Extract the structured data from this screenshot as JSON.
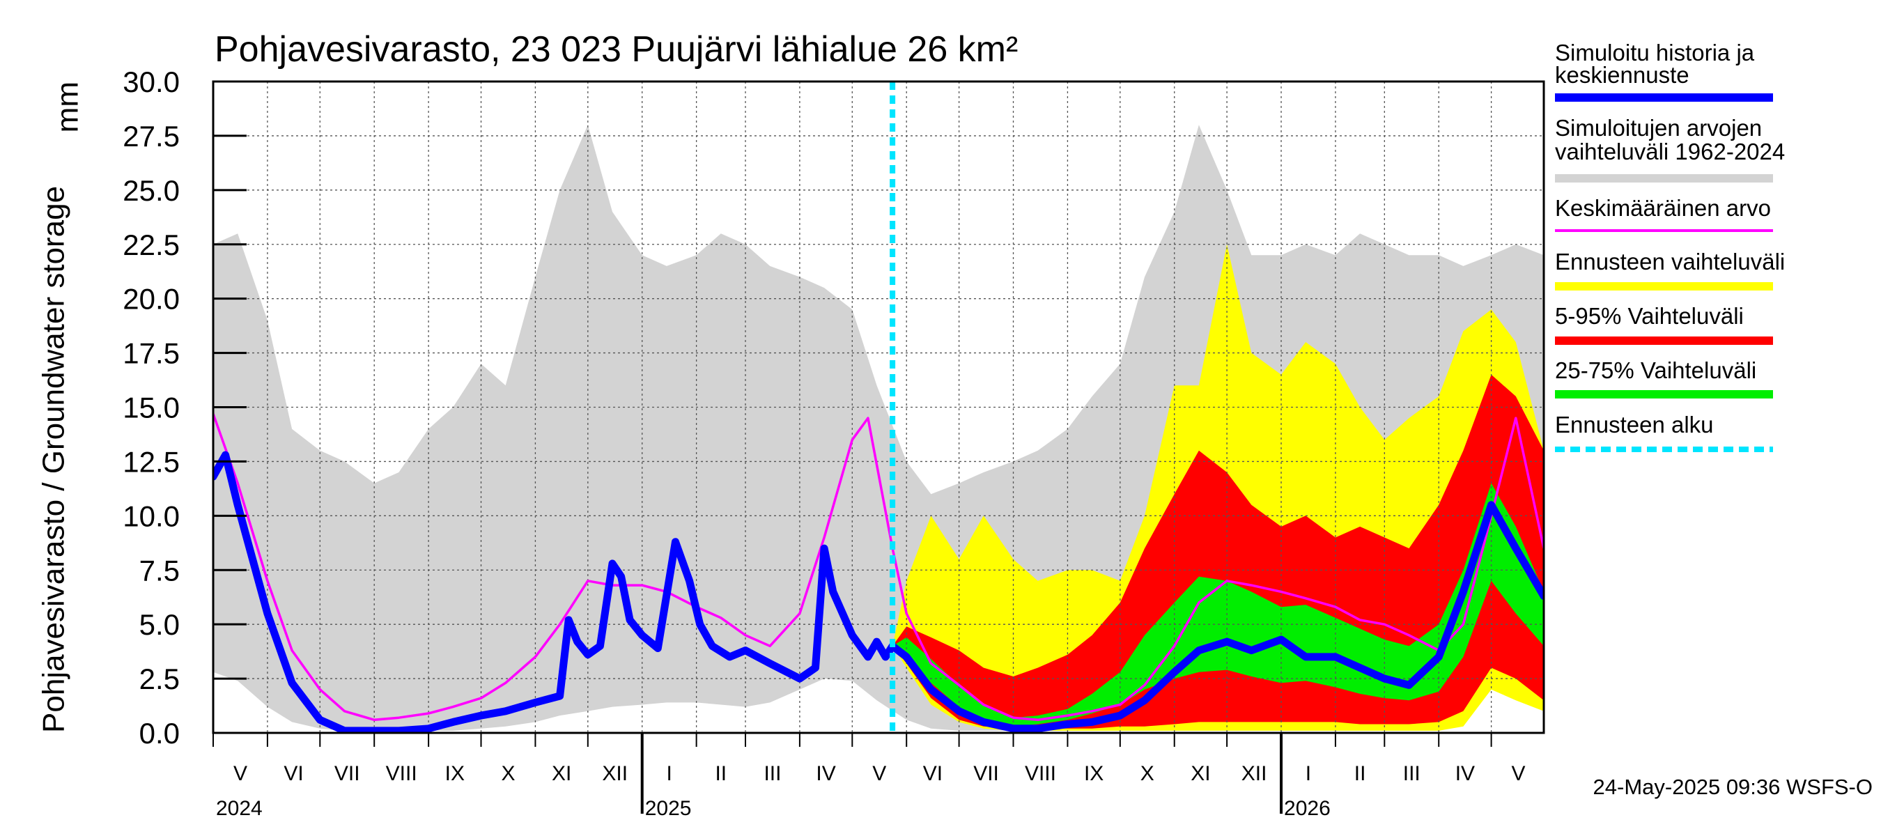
{
  "chart_data": {
    "type": "area",
    "title": "Pohjavesivarasto, 23 023 Puujärvi lähialue 26 km²",
    "ylabel": "Pohjavesivarasto / Groundwater storage",
    "yunit": "mm",
    "ylim": [
      0,
      30
    ],
    "yticks": [
      "0.0",
      "2.5",
      "5.0",
      "7.5",
      "10.0",
      "12.5",
      "15.0",
      "17.5",
      "20.0",
      "22.5",
      "25.0",
      "27.5",
      "30.0"
    ],
    "x_start": "2024-05-01",
    "x_end": "2026-05-31",
    "grid": true,
    "forecast_start": "2025-05-24",
    "months": [
      "V",
      "VI",
      "VII",
      "VIII",
      "IX",
      "X",
      "XI",
      "XII",
      "I",
      "II",
      "III",
      "IV",
      "V",
      "VI",
      "VII",
      "VIII",
      "IX",
      "X",
      "XI",
      "XII",
      "I",
      "II",
      "III",
      "IV",
      "V"
    ],
    "years": [
      "2024",
      "2025",
      "2026"
    ],
    "timestamp": "24-May-2025 09:36 WSFS-O",
    "legend": [
      {
        "label": "Simuloitu historia ja keskiennuste",
        "color": "#0000ff"
      },
      {
        "label": "Simuloitujen arvojen vaihteluväli 1962-2024",
        "color": "#d3d3d3"
      },
      {
        "label": "Keskimääräinen arvo",
        "color": "#ff00ff"
      },
      {
        "label": "Ennusteen vaihteluväli",
        "color": "#ffff00"
      },
      {
        "label": "5-95% Vaihteluväli",
        "color": "#ff0000"
      },
      {
        "label": "25-75% Vaihteluväli",
        "color": "#00ee00"
      },
      {
        "label": "Ennusteen alku",
        "color": "#00e5ff"
      }
    ],
    "series": {
      "range_1962_2024": {
        "dates": [
          "2024-05-01",
          "2024-05-15",
          "2024-06-01",
          "2024-06-15",
          "2024-07-01",
          "2024-07-15",
          "2024-08-01",
          "2024-08-15",
          "2024-09-01",
          "2024-09-15",
          "2024-10-01",
          "2024-10-15",
          "2024-11-01",
          "2024-11-15",
          "2024-12-01",
          "2024-12-15",
          "2025-01-01",
          "2025-01-15",
          "2025-02-01",
          "2025-02-15",
          "2025-03-01",
          "2025-03-15",
          "2025-04-01",
          "2025-04-15",
          "2025-05-01",
          "2025-05-15",
          "2025-06-01",
          "2025-06-15",
          "2025-07-01",
          "2025-07-15",
          "2025-08-01",
          "2025-08-15",
          "2025-09-01",
          "2025-09-15",
          "2025-10-01",
          "2025-10-15",
          "2025-11-01",
          "2025-11-15",
          "2025-12-01",
          "2025-12-15",
          "2026-01-01",
          "2026-01-15",
          "2026-02-01",
          "2026-02-15",
          "2026-03-01",
          "2026-03-15",
          "2026-04-01",
          "2026-04-15",
          "2026-05-01",
          "2026-05-15",
          "2026-05-31"
        ],
        "min": [
          2.8,
          2.4,
          1.2,
          0.5,
          0.2,
          0.1,
          0.1,
          0.1,
          0.1,
          0.1,
          0.2,
          0.3,
          0.5,
          0.8,
          1.0,
          1.2,
          1.3,
          1.4,
          1.4,
          1.3,
          1.2,
          1.4,
          2.0,
          2.5,
          2.4,
          1.5,
          0.6,
          0.2,
          0.1,
          0.1,
          0.1,
          0.1,
          0.1,
          0.1,
          0.2,
          0.3,
          0.5,
          0.8,
          1.0,
          1.2,
          1.3,
          1.4,
          1.4,
          1.3,
          1.2,
          1.4,
          2.0,
          2.5,
          2.6,
          2.4,
          2.3
        ],
        "max": [
          22.5,
          23.0,
          19.0,
          14.0,
          13.0,
          12.5,
          11.5,
          12.0,
          14.0,
          15.0,
          17.0,
          16.0,
          21.0,
          25.0,
          28.0,
          24.0,
          22.0,
          21.5,
          22.0,
          23.0,
          22.5,
          21.5,
          21.0,
          20.5,
          19.5,
          16.0,
          12.5,
          11.0,
          11.5,
          12.0,
          12.5,
          13.0,
          14.0,
          15.5,
          17.0,
          21.0,
          24.0,
          28.0,
          25.0,
          22.0,
          22.0,
          22.5,
          22.0,
          23.0,
          22.5,
          22.0,
          22.0,
          21.5,
          22.0,
          22.5,
          22.0
        ]
      },
      "forecast_bands": {
        "dates": [
          "2025-05-24",
          "2025-06-01",
          "2025-06-15",
          "2025-07-01",
          "2025-07-15",
          "2025-08-01",
          "2025-08-15",
          "2025-09-01",
          "2025-09-15",
          "2025-10-01",
          "2025-10-15",
          "2025-11-01",
          "2025-11-15",
          "2025-12-01",
          "2025-12-15",
          "2026-01-01",
          "2026-01-15",
          "2026-02-01",
          "2026-02-15",
          "2026-03-01",
          "2026-03-15",
          "2026-04-01",
          "2026-04-15",
          "2026-05-01",
          "2026-05-15",
          "2026-05-31"
        ],
        "p0": [
          4.0,
          3.0,
          1.3,
          0.5,
          0.2,
          0.1,
          0.1,
          0.1,
          0.1,
          0.1,
          0.1,
          0.1,
          0.1,
          0.1,
          0.1,
          0.1,
          0.1,
          0.1,
          0.1,
          0.1,
          0.1,
          0.1,
          0.3,
          2.0,
          1.5,
          1.0
        ],
        "p5": [
          4.0,
          3.2,
          1.6,
          0.6,
          0.3,
          0.2,
          0.2,
          0.2,
          0.2,
          0.3,
          0.3,
          0.4,
          0.5,
          0.5,
          0.5,
          0.5,
          0.5,
          0.5,
          0.4,
          0.4,
          0.4,
          0.5,
          1.0,
          3.0,
          2.5,
          1.5
        ],
        "p25": [
          4.0,
          3.6,
          2.3,
          1.2,
          0.6,
          0.3,
          0.4,
          0.6,
          0.9,
          1.3,
          2.0,
          2.5,
          2.8,
          2.9,
          2.6,
          2.3,
          2.4,
          2.1,
          1.8,
          1.6,
          1.5,
          1.9,
          3.5,
          7.0,
          5.5,
          4.0
        ],
        "p75": [
          4.0,
          4.4,
          3.4,
          2.2,
          1.3,
          0.7,
          0.8,
          1.1,
          1.8,
          2.8,
          4.5,
          6.0,
          7.2,
          7.0,
          6.5,
          5.8,
          5.9,
          5.3,
          4.8,
          4.3,
          4.0,
          5.0,
          7.5,
          11.5,
          9.5,
          6.5
        ],
        "p95": [
          4.0,
          4.9,
          4.4,
          3.8,
          3.0,
          2.6,
          3.0,
          3.6,
          4.5,
          6.0,
          8.5,
          11.0,
          13.0,
          12.0,
          10.5,
          9.5,
          10.0,
          9.0,
          9.5,
          9.0,
          8.5,
          10.5,
          13.0,
          16.5,
          15.5,
          13.0
        ],
        "p100": [
          4.0,
          7.0,
          10.0,
          8.0,
          10.0,
          8.0,
          7.0,
          7.5,
          7.5,
          7.0,
          10.0,
          16.0,
          16.0,
          22.5,
          17.5,
          16.5,
          18.0,
          17.0,
          15.0,
          13.5,
          14.5,
          15.5,
          18.5,
          19.5,
          18.0,
          13.0
        ]
      },
      "simulated": {
        "dates": [
          "2024-05-01",
          "2024-05-08",
          "2024-05-15",
          "2024-06-01",
          "2024-06-15",
          "2024-07-01",
          "2024-07-15",
          "2024-08-01",
          "2024-08-15",
          "2024-09-01",
          "2024-09-15",
          "2024-10-01",
          "2024-10-15",
          "2024-11-01",
          "2024-11-15",
          "2024-11-20",
          "2024-11-25",
          "2024-12-01",
          "2024-12-08",
          "2024-12-15",
          "2024-12-20",
          "2024-12-25",
          "2025-01-01",
          "2025-01-10",
          "2025-01-20",
          "2025-01-28",
          "2025-02-03",
          "2025-02-10",
          "2025-02-20",
          "2025-03-01",
          "2025-03-15",
          "2025-04-01",
          "2025-04-10",
          "2025-04-15",
          "2025-04-20",
          "2025-05-01",
          "2025-05-10",
          "2025-05-15",
          "2025-05-20",
          "2025-05-24",
          "2025-06-01",
          "2025-06-15",
          "2025-07-01",
          "2025-07-15",
          "2025-08-01",
          "2025-08-15",
          "2025-09-01",
          "2025-09-15",
          "2025-10-01",
          "2025-10-15",
          "2025-11-01",
          "2025-11-15",
          "2025-12-01",
          "2025-12-15",
          "2026-01-01",
          "2026-01-15",
          "2026-02-01",
          "2026-02-15",
          "2026-03-01",
          "2026-03-15",
          "2026-04-01",
          "2026-04-15",
          "2026-05-01",
          "2026-05-15",
          "2026-05-31"
        ],
        "values": [
          11.8,
          12.8,
          10.5,
          5.5,
          2.3,
          0.6,
          0.1,
          0.1,
          0.1,
          0.2,
          0.5,
          0.8,
          1.0,
          1.4,
          1.7,
          5.2,
          4.2,
          3.6,
          4.0,
          7.8,
          7.2,
          5.2,
          4.5,
          3.9,
          8.8,
          7.0,
          5.0,
          4.0,
          3.5,
          3.8,
          3.2,
          2.5,
          3.0,
          8.5,
          6.5,
          4.5,
          3.5,
          4.2,
          3.5,
          4.0,
          3.5,
          2.0,
          1.0,
          0.5,
          0.2,
          0.2,
          0.4,
          0.5,
          0.8,
          1.5,
          2.8,
          3.8,
          4.2,
          3.8,
          4.3,
          3.5,
          3.5,
          3.0,
          2.5,
          2.2,
          3.5,
          6.5,
          10.5,
          8.5,
          6.3
        ]
      },
      "mean": {
        "dates": [
          "2024-05-01",
          "2024-05-15",
          "2024-06-01",
          "2024-06-15",
          "2024-07-01",
          "2024-07-15",
          "2024-08-01",
          "2024-08-15",
          "2024-09-01",
          "2024-09-15",
          "2024-10-01",
          "2024-10-15",
          "2024-11-01",
          "2024-11-15",
          "2024-12-01",
          "2024-12-15",
          "2025-01-01",
          "2025-01-15",
          "2025-02-01",
          "2025-02-15",
          "2025-03-01",
          "2025-03-15",
          "2025-04-01",
          "2025-04-15",
          "2025-05-01",
          "2025-05-10",
          "2025-05-24",
          "2025-06-01",
          "2025-06-15",
          "2025-07-01",
          "2025-07-15",
          "2025-08-01",
          "2025-08-15",
          "2025-09-01",
          "2025-09-15",
          "2025-10-01",
          "2025-10-15",
          "2025-11-01",
          "2025-11-15",
          "2025-12-01",
          "2025-12-15",
          "2026-01-01",
          "2026-01-15",
          "2026-02-01",
          "2026-02-15",
          "2026-03-01",
          "2026-03-15",
          "2026-04-01",
          "2026-04-15",
          "2026-05-01",
          "2026-05-15",
          "2026-05-31"
        ],
        "values": [
          14.7,
          11.5,
          7.0,
          3.8,
          2.0,
          1.0,
          0.6,
          0.7,
          0.9,
          1.2,
          1.6,
          2.3,
          3.5,
          5.0,
          7.0,
          6.8,
          6.8,
          6.5,
          5.8,
          5.3,
          4.5,
          4.0,
          5.5,
          9.0,
          13.5,
          14.5,
          8.5,
          5.5,
          3.2,
          2.2,
          1.3,
          0.7,
          0.6,
          0.8,
          1.0,
          1.3,
          2.2,
          4.0,
          6.0,
          7.0,
          6.8,
          6.5,
          6.2,
          5.8,
          5.2,
          5.0,
          4.5,
          3.8,
          5.0,
          10.0,
          14.5,
          8.5
        ]
      }
    }
  }
}
